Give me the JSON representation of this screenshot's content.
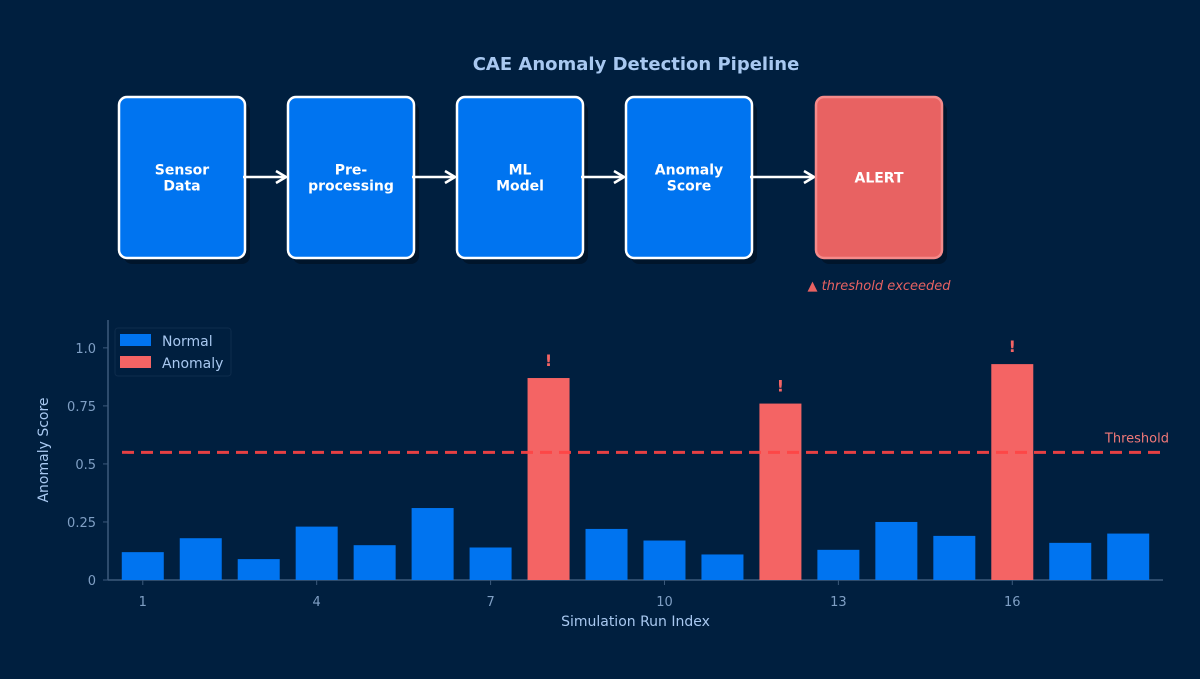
{
  "title": "CAE Anomaly Detection Pipeline",
  "pipeline": [
    {
      "lines": [
        "Sensor",
        "Data"
      ],
      "kind": "normal"
    },
    {
      "lines": [
        "Pre-",
        "processing"
      ],
      "kind": "normal"
    },
    {
      "lines": [
        "ML",
        "Model"
      ],
      "kind": "normal"
    },
    {
      "lines": [
        "Anomaly",
        "Score"
      ],
      "kind": "normal"
    },
    {
      "lines": [
        "ALERT"
      ],
      "kind": "alert"
    }
  ],
  "alert_note": "▲ threshold exceeded",
  "colors": {
    "background": "#001f3f",
    "normal": "#0074f0",
    "anomaly": "#f46464",
    "alert_box": "#e86262",
    "threshold": "#ff4444",
    "text": "#a8c8f0"
  },
  "chart_data": {
    "type": "bar",
    "x": [
      1,
      2,
      3,
      4,
      5,
      6,
      7,
      8,
      9,
      10,
      11,
      12,
      13,
      14,
      15,
      16,
      17,
      18
    ],
    "values": [
      0.12,
      0.18,
      0.09,
      0.23,
      0.15,
      0.31,
      0.14,
      0.87,
      0.22,
      0.17,
      0.11,
      0.76,
      0.13,
      0.25,
      0.19,
      0.93,
      0.16,
      0.2
    ],
    "anomaly": [
      false,
      false,
      false,
      false,
      false,
      false,
      false,
      true,
      false,
      false,
      false,
      true,
      false,
      false,
      false,
      true,
      false,
      false
    ],
    "anomaly_marker": "!",
    "threshold": 0.55,
    "threshold_label": "Threshold",
    "xlabel": "Simulation Run Index",
    "ylabel": "Anomaly Score",
    "xticks": [
      1,
      4,
      7,
      10,
      13,
      16
    ],
    "yticks": [
      0,
      0.25,
      0.5,
      0.75,
      1.0
    ],
    "ytick_labels": [
      "0",
      "0.25",
      "0.5",
      "0.75",
      "1.0"
    ],
    "xlim": [
      0.4,
      18.6
    ],
    "ylim": [
      0,
      1.12
    ],
    "legend": [
      {
        "label": "Normal",
        "kind": "normal"
      },
      {
        "label": "Anomaly",
        "kind": "anomaly"
      }
    ],
    "legend_position": "top-left"
  }
}
